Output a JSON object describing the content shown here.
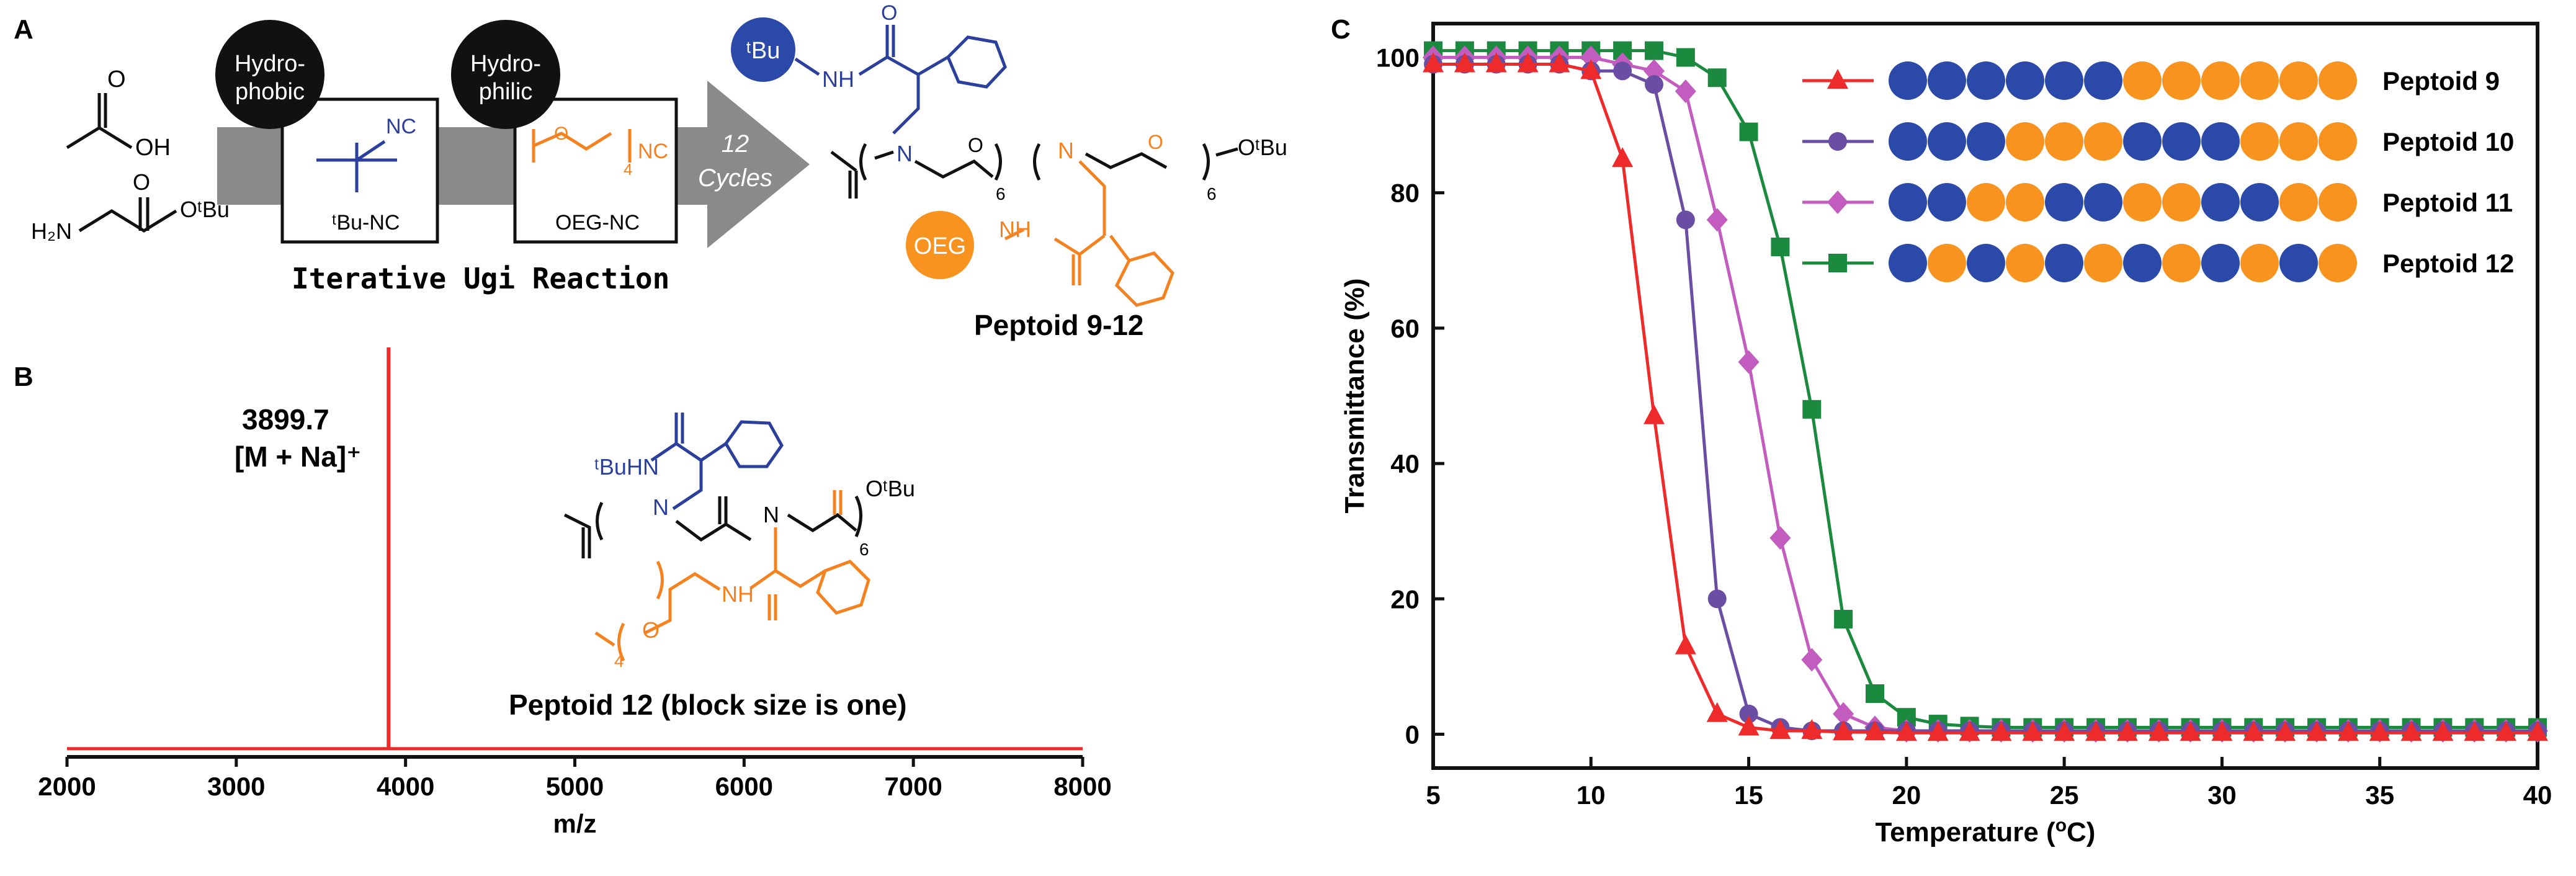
{
  "panel_labels": {
    "a": "A",
    "b": "B",
    "c": "C"
  },
  "colors": {
    "blue": "#2b3f9c",
    "orange": "#f58220",
    "red": "#ee2b2b",
    "purple": "#6a4ea3",
    "magenta": "#c25cbf",
    "green": "#1b8a3e",
    "black": "#111111",
    "arrow_gray": "#8c8c8c",
    "circle_blue": "#2b49a8",
    "circle_orange": "#f7931e"
  },
  "panel_a": {
    "acetic_acid_label": "OH",
    "glycine_amine": "H₂N",
    "glycine_ester": "OᵗBu",
    "hydrophobic_line1": "Hydro-",
    "hydrophobic_line2": "phobic",
    "hydrophilic_line1": "Hydro-",
    "hydrophilic_line2": "philic",
    "tbu_nc_group": "NC",
    "tbu_nc_label": "ᵗBu-NC",
    "oeg_nc_sub": "4",
    "oeg_nc_group": "NC",
    "oeg_nc_label": "OEG-NC",
    "cycles_line1": "12",
    "cycles_line2": "Cycles",
    "reaction_label": "Iterative Ugi Reaction",
    "tbu_circle": "ᵗBu",
    "oeg_circle": "OEG",
    "nh_blue": "NH",
    "nh_orange": "NH",
    "n_label": "N",
    "n_label2": "N",
    "repeat_sub": "6",
    "repeat_sub2": "6",
    "ester_label": "OᵗBu",
    "peptoid_label": "Peptoid 9-12"
  },
  "panel_b": {
    "peak_value": "3899.7",
    "peak_ion": "[M + Na]⁺",
    "tbuhn_label": "ᵗBuHN",
    "n_label": "N",
    "n_label2": "N",
    "nh_label": "NH",
    "o_label": "O",
    "repeat_sub": "6",
    "repeat_sub_oeg": "4",
    "ester_label": "OᵗBu",
    "structure_caption": "Peptoid 12 (block size is one)"
  },
  "chart_data": [
    {
      "type": "line",
      "panel": "B",
      "title": "",
      "xlabel": "m/z",
      "ylabel": "",
      "xlim": [
        2000,
        8000
      ],
      "xticks": [
        2000,
        3000,
        4000,
        5000,
        6000,
        7000,
        8000
      ],
      "tick_labels": [
        "2000",
        "3000",
        "4000",
        "5000",
        "6000",
        "7000",
        "8000"
      ],
      "baseline": 0.02,
      "peak": {
        "x": 3899.7,
        "intensity": 1.0
      },
      "series": [
        {
          "name": "Peptoid 12",
          "color": "#ee2b2b"
        }
      ]
    },
    {
      "type": "line",
      "panel": "C",
      "title": "",
      "xlabel": "Temperature (°C)",
      "xlabel_parts": {
        "pre": "Temperature (",
        "sup": "o",
        "post": "C)"
      },
      "ylabel": "Transmittance (%)",
      "xlim": [
        5,
        40
      ],
      "ylim": [
        -5,
        105
      ],
      "xticks": [
        5,
        10,
        15,
        20,
        25,
        30,
        35,
        40
      ],
      "yticks": [
        0,
        20,
        40,
        60,
        80,
        100
      ],
      "x_tick_labels": [
        "5",
        "10",
        "15",
        "20",
        "25",
        "30",
        "35",
        "40"
      ],
      "y_tick_labels": [
        "0",
        "20",
        "40",
        "60",
        "80",
        "100"
      ],
      "x": [
        5,
        6,
        7,
        8,
        9,
        10,
        11,
        12,
        13,
        14,
        15,
        16,
        17,
        18,
        19,
        20,
        21,
        22,
        23,
        24,
        25,
        26,
        27,
        28,
        29,
        30,
        31,
        32,
        33,
        34,
        35,
        36,
        37,
        38,
        39,
        40
      ],
      "series": [
        {
          "name": "Peptoid 9",
          "color": "#ee2b2b",
          "marker": "triangle",
          "sequence": "BBBBBBOOOOOO",
          "values": [
            99,
            99,
            99,
            99,
            99,
            98,
            85,
            47,
            13,
            3,
            1,
            0.5,
            0.5,
            0.3,
            0.3,
            0.2,
            0.2,
            0.2,
            0.2,
            0.2,
            0.2,
            0.2,
            0.2,
            0.2,
            0.2,
            0.2,
            0.2,
            0.2,
            0.2,
            0.2,
            0.2,
            0.2,
            0.2,
            0.2,
            0.2,
            0.2
          ]
        },
        {
          "name": "Peptoid 10",
          "color": "#6a4ea3",
          "marker": "circle",
          "sequence": "BBBOOOBBBOOO",
          "values": [
            99,
            99,
            99,
            99,
            99,
            98,
            98,
            96,
            76,
            20,
            3,
            1,
            0.5,
            0.5,
            0.5,
            0.5,
            0.5,
            0.5,
            0.5,
            0.5,
            0.5,
            0.5,
            0.5,
            0.5,
            0.5,
            0.5,
            0.5,
            0.5,
            0.5,
            0.5,
            0.5,
            0.5,
            0.5,
            0.5,
            0.5,
            0.5
          ]
        },
        {
          "name": "Peptoid 11",
          "color": "#c25cbf",
          "marker": "diamond",
          "sequence": "BBOOBBOOBBOO",
          "values": [
            100,
            100,
            100,
            100,
            100,
            100,
            99,
            98,
            95,
            76,
            55,
            29,
            11,
            3,
            1,
            0.5,
            0.5,
            0.5,
            0.5,
            0.5,
            0.5,
            0.5,
            0.5,
            0.5,
            0.5,
            0.5,
            0.5,
            0.5,
            0.5,
            0.5,
            0.5,
            0.5,
            0.5,
            0.5,
            0.5,
            0.5
          ]
        },
        {
          "name": "Peptoid 12",
          "color": "#1b8a3e",
          "marker": "square",
          "sequence": "BOBOBOBOBOBO",
          "values": [
            101,
            101,
            101,
            101,
            101,
            101,
            101,
            101,
            100,
            97,
            89,
            72,
            48,
            17,
            6,
            2.5,
            1.5,
            1.2,
            1,
            1,
            1,
            1,
            1,
            1,
            1,
            1,
            1,
            1,
            1,
            1,
            1,
            1,
            1,
            1,
            1,
            1
          ]
        }
      ]
    }
  ]
}
